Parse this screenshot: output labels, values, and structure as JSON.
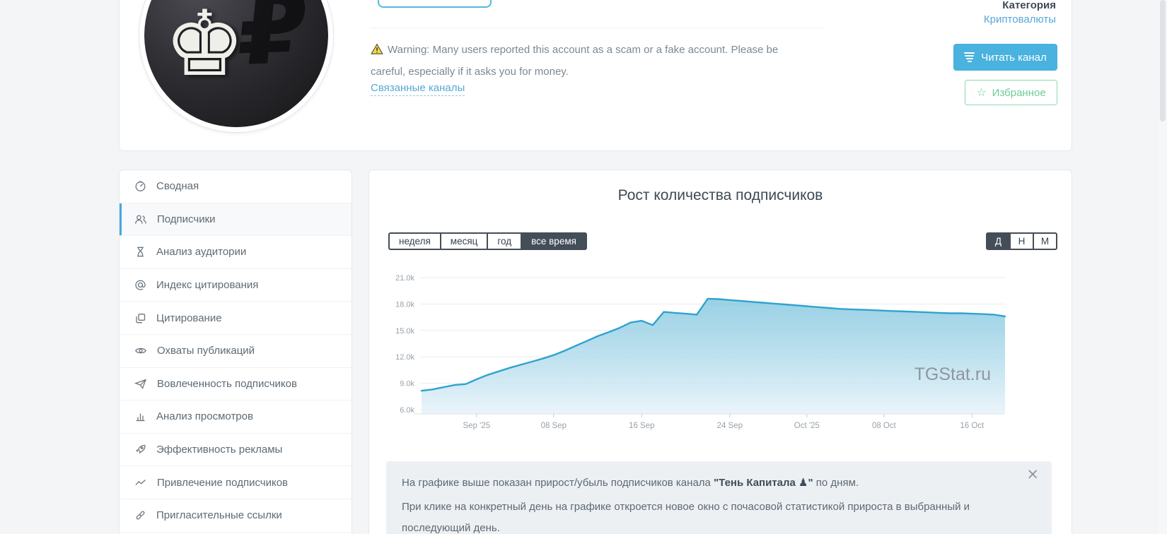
{
  "top_card": {
    "warning_text": "Warning: Many users reported this account as a scam or a fake account. Please be careful, especially if it asks you for money.",
    "related_link": "Связанные каналы",
    "category_label": "Категория",
    "category_value": "Криптовалюты",
    "read_button": "Читать канал",
    "favorite_button": "Избранное",
    "warning_icon": "warning-triangle-icon",
    "read_button_icon": "feed-lines-icon",
    "favorite_icon": "star-icon",
    "avatar_glyphs": {
      "king": "♚",
      "ruble_shadow": "₽"
    }
  },
  "sidebar": {
    "items": [
      {
        "label": "Сводная",
        "icon": "gauge-icon",
        "active": false
      },
      {
        "label": "Подписчики",
        "icon": "subscribers-icon",
        "active": true
      },
      {
        "label": "Анализ аудитории",
        "icon": "hourglass-icon",
        "active": false
      },
      {
        "label": "Индекс цитирования",
        "icon": "at-sign-icon",
        "active": false
      },
      {
        "label": "Цитирование",
        "icon": "copy-quote-icon",
        "active": false
      },
      {
        "label": "Охваты публикаций",
        "icon": "eye-icon",
        "active": false
      },
      {
        "label": "Вовлеченность подписчиков",
        "icon": "paper-plane-icon",
        "active": false
      },
      {
        "label": "Анализ просмотров",
        "icon": "bar-chart-icon",
        "active": false
      },
      {
        "label": "Эффективность рекламы",
        "icon": "rocket-icon",
        "active": false
      },
      {
        "label": "Привлечение подписчиков",
        "icon": "trend-line-icon",
        "active": false
      },
      {
        "label": "Пригласительные ссылки",
        "icon": "link-icon",
        "active": false
      }
    ]
  },
  "chart_card": {
    "title": "Рост количества подписчиков",
    "range_buttons": [
      {
        "label": "неделя",
        "active": false
      },
      {
        "label": "месяц",
        "active": false
      },
      {
        "label": "год",
        "active": false
      },
      {
        "label": "все время",
        "active": true
      }
    ],
    "granularity_buttons": [
      {
        "label": "Д",
        "active": true
      },
      {
        "label": "Н",
        "active": false
      },
      {
        "label": "М",
        "active": false
      }
    ],
    "watermark": "TGStat.ru",
    "info": {
      "line1_before": "На графике выше показан прирост/убыль подписчиков канала ",
      "line1_bold": "\"Тень Капитала ♟\"",
      "line1_after": " по дням.",
      "line2": "При клике на конкретный день на графике откроется новое окно с почасовой статистикой прироста в выбранный и последующий день.",
      "close_icon": "close-icon"
    }
  },
  "chart_data": {
    "type": "area",
    "title": "Рост количества подписчиков",
    "series_name": "Подписчики",
    "x_start_date": "27 Aug 2025",
    "x_unit": "day",
    "values": [
      8150,
      8300,
      8550,
      8800,
      8900,
      9450,
      9950,
      10350,
      10750,
      11100,
      11450,
      11800,
      12200,
      12700,
      13250,
      13800,
      14350,
      14800,
      15300,
      15900,
      16100,
      15600,
      17100,
      17000,
      16900,
      16800,
      18600,
      18550,
      18450,
      18350,
      18250,
      18150,
      18050,
      17950,
      17850,
      17750,
      17650,
      17550,
      17450,
      17400,
      17350,
      17300,
      17250,
      17200,
      17150,
      17100,
      17050,
      17000,
      16950,
      16950,
      16900,
      16850,
      16800,
      16600
    ],
    "xticks": [
      {
        "label": "Sep '25",
        "day": 5
      },
      {
        "label": "08 Sep",
        "day": 12
      },
      {
        "label": "16 Sep",
        "day": 20
      },
      {
        "label": "24 Sep",
        "day": 28
      },
      {
        "label": "Oct '25",
        "day": 35
      },
      {
        "label": "08 Oct",
        "day": 42
      },
      {
        "label": "16 Oct",
        "day": 50
      }
    ],
    "yticks": [
      {
        "label": "21.0k",
        "value": 21000
      },
      {
        "label": "18.0k",
        "value": 18000
      },
      {
        "label": "15.0k",
        "value": 15000
      },
      {
        "label": "12.0k",
        "value": 12000
      },
      {
        "label": "9.0k",
        "value": 9000
      },
      {
        "label": "6.0k",
        "value": 6000
      }
    ],
    "ylim": [
      6000,
      21000
    ],
    "grid": "horizontal-only",
    "legend": "none",
    "line_color": "#2fa3cf",
    "fill_top_color": "#79c2dd",
    "fill_bottom_color": "#e9f4fa",
    "grid_color": "#e9ebee",
    "axis_label_color": "#98a2aa",
    "watermark_color": "#878f98"
  }
}
